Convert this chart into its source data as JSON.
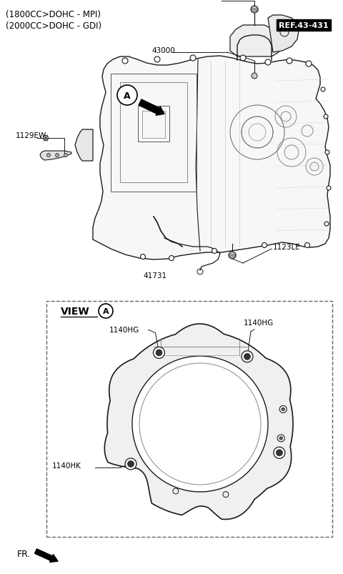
{
  "title_lines": [
    "(1800CC>DOHC - MPI)",
    "(2000CC>DOHC - GDI)"
  ],
  "bg_color": "#ffffff",
  "label_fontsize": 7.5,
  "title_fontsize": 8.5,
  "fr_text": "FR."
}
